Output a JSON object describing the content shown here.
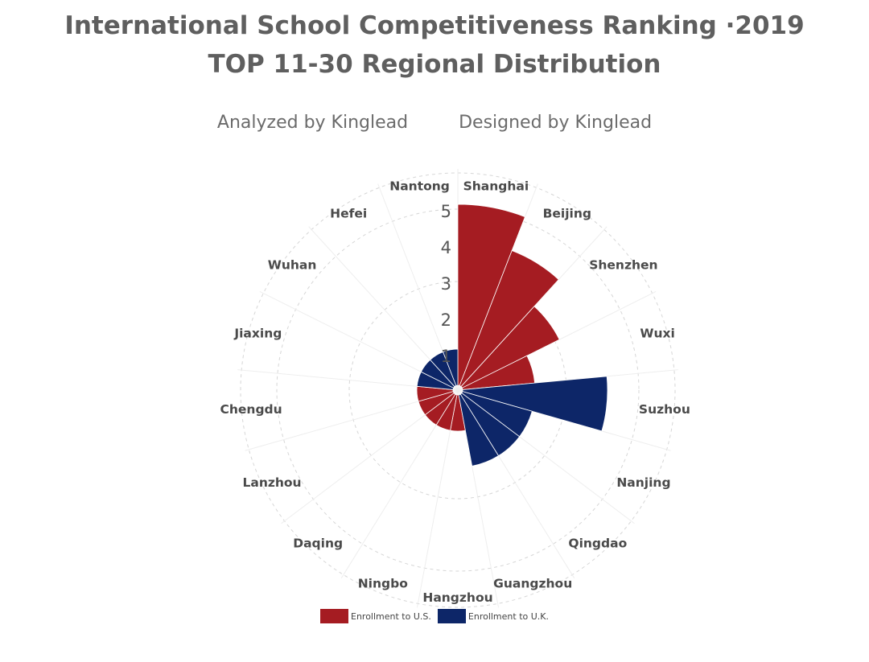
{
  "title_line1": "International School Competitiveness Ranking ·2019",
  "title_line2": "TOP 11-30 Regional Distribution",
  "analyzed_by": "Analyzed by Kinglead",
  "designed_by": "Designed by Kinglead",
  "colors": {
    "us": "#a51c22",
    "uk": "#0d2668",
    "grid": "#dddddd"
  },
  "chart_data": {
    "type": "polar-bar",
    "title": "International School Competitiveness Ranking ·2019 TOP 11-30 Regional Distribution",
    "categories": [
      "Shanghai",
      "Beijing",
      "Shenzhen",
      "Wuxi",
      "Suzhou",
      "Nanjing",
      "Qingdao",
      "Guangzhou",
      "Hangzhou",
      "Ningbo",
      "Daqing",
      "Lanzhou",
      "Chengdu",
      "Jiaxing",
      "Wuhan",
      "Hefei",
      "Nantong"
    ],
    "radial_ticks": [
      "1",
      "2",
      "3",
      "4",
      "5"
    ],
    "rmax": 5,
    "series": [
      {
        "name": "Enrollment to U.S.",
        "values": [
          5,
          4,
          3,
          2,
          0,
          0,
          0,
          0,
          1,
          1,
          1,
          1,
          1,
          0,
          0,
          0,
          0
        ]
      },
      {
        "name": "Enrollment to U.K.",
        "values": [
          0,
          0,
          0,
          0,
          4,
          2,
          2,
          2,
          0,
          0,
          0,
          0,
          0,
          1,
          1,
          1,
          1
        ]
      }
    ]
  }
}
